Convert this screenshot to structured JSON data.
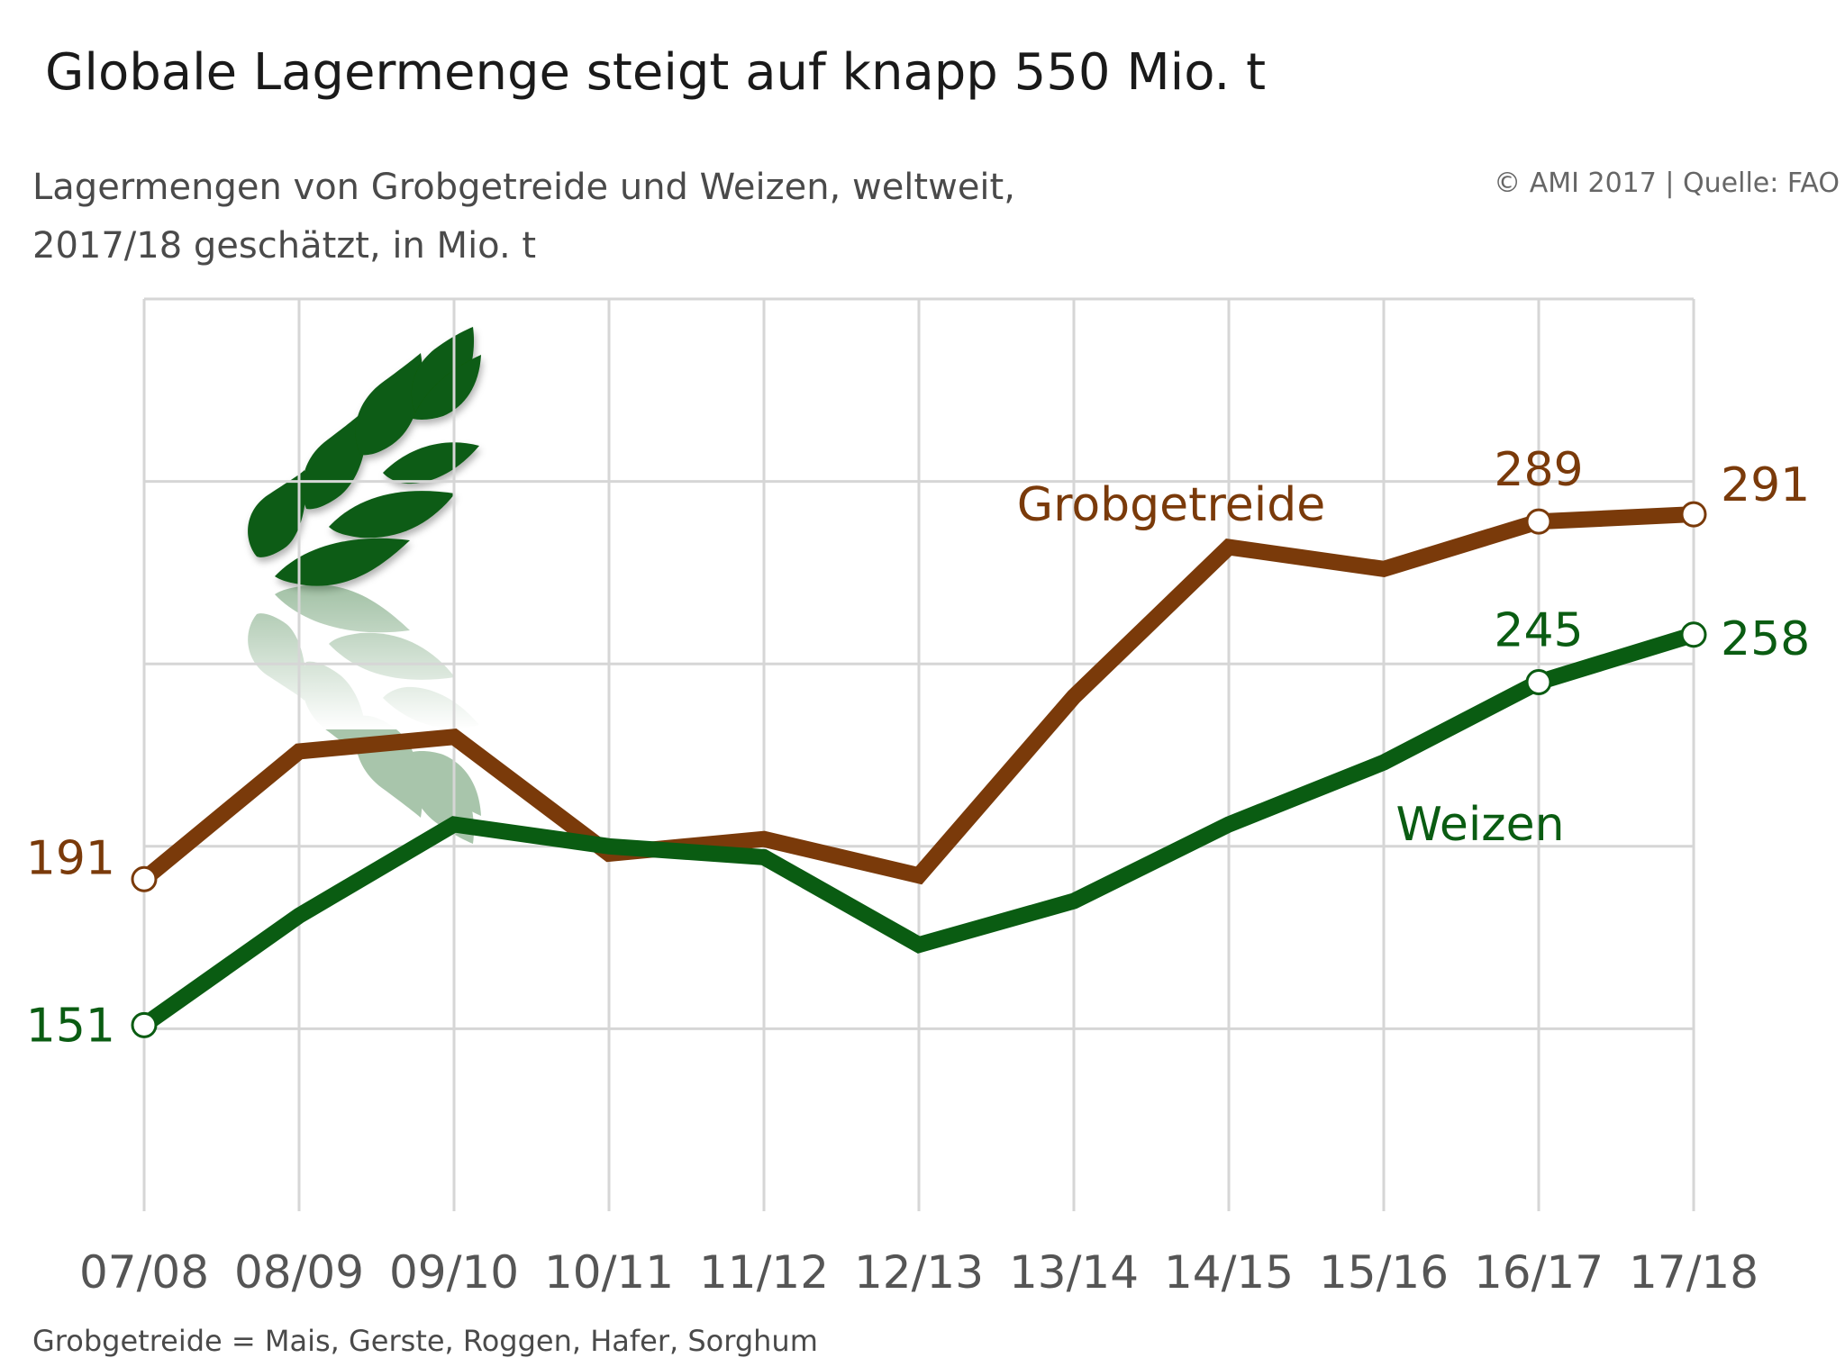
{
  "header": {
    "title": "Globale Lagermenge steigt auf knapp 550 Mio. t",
    "subtitle_line1": "Lagermengen von Grobgetreide und Weizen, weltweit,",
    "subtitle_line2": "2017/18 geschätzt, in Mio. t",
    "source": "© AMI 2017 | Quelle: FAO"
  },
  "footnote": "Grobgetreide = Mais, Gerste, Roggen, Hafer, Sorghum",
  "decoration": {
    "icon": "wheat-ear-icon",
    "color": "#0a5c12"
  },
  "chart_data": {
    "type": "line",
    "x": [
      "07/08",
      "08/09",
      "09/10",
      "10/11",
      "11/12",
      "12/13",
      "13/14",
      "14/15",
      "15/16",
      "16/17",
      "17/18"
    ],
    "ylim": [
      100,
      350
    ],
    "grid": true,
    "y_ticks_shown": false,
    "series": [
      {
        "name": "Grobgetreide",
        "color": "#7a3a0a",
        "values": [
          191,
          226,
          230,
          198,
          202,
          192,
          241,
          282,
          276,
          289,
          291
        ],
        "labels": [
          {
            "index": 0,
            "text": "191"
          },
          {
            "index": 9,
            "text": "289"
          },
          {
            "index": 10,
            "text": "291"
          }
        ],
        "markers": [
          0,
          9,
          10
        ]
      },
      {
        "name": "Weizen",
        "color": "#0a5c12",
        "values": [
          151,
          181,
          206,
          200,
          197,
          173,
          185,
          206,
          223,
          245,
          258
        ],
        "labels": [
          {
            "index": 0,
            "text": "151"
          },
          {
            "index": 9,
            "text": "245"
          },
          {
            "index": 10,
            "text": "258"
          }
        ],
        "markers": [
          0,
          9,
          10
        ]
      }
    ]
  }
}
